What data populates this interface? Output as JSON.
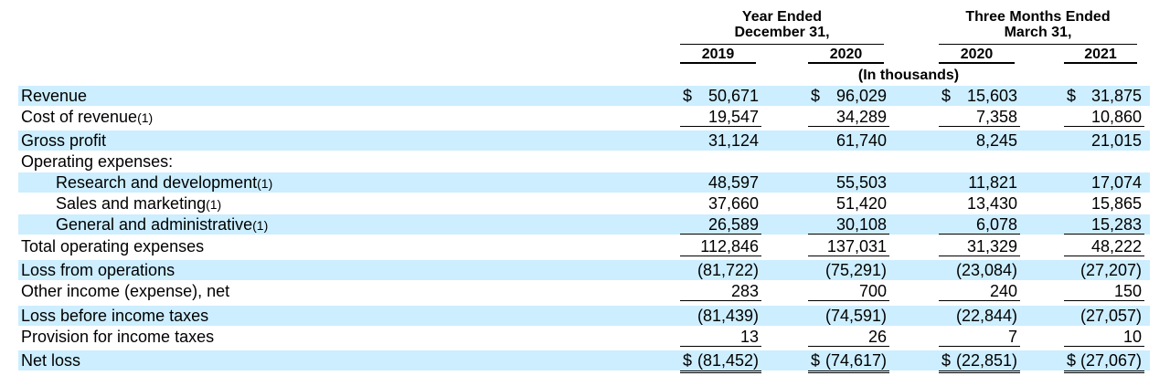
{
  "header": {
    "group1_line1": "Year Ended",
    "group1_line2": "December 31,",
    "group2_line1": "Three Months Ended",
    "group2_line2": "March 31,",
    "units": "(In thousands)",
    "years": [
      "2019",
      "2020",
      "2020",
      "2021"
    ]
  },
  "rows": [
    {
      "label": "Revenue",
      "note": "",
      "indent": false,
      "shaded": true,
      "cells": [
        {
          "cur": "$",
          "val": "50,671"
        },
        {
          "cur": "$",
          "val": "96,029"
        },
        {
          "cur": "$",
          "val": "15,603"
        },
        {
          "cur": "$",
          "val": "31,875"
        }
      ]
    },
    {
      "label": "Cost of revenue",
      "note": "(1)",
      "indent": false,
      "shaded": false,
      "underline": true,
      "cells": [
        {
          "cur": "",
          "val": "19,547"
        },
        {
          "cur": "",
          "val": "34,289"
        },
        {
          "cur": "",
          "val": "7,358"
        },
        {
          "cur": "",
          "val": "10,860"
        }
      ]
    },
    {
      "label": "Gross profit",
      "note": "",
      "indent": false,
      "shaded": true,
      "cells": [
        {
          "cur": "",
          "val": "31,124"
        },
        {
          "cur": "",
          "val": "61,740"
        },
        {
          "cur": "",
          "val": "8,245"
        },
        {
          "cur": "",
          "val": "21,015"
        }
      ]
    },
    {
      "label": "Operating expenses:",
      "note": "",
      "indent": false,
      "shaded": false,
      "cells": []
    },
    {
      "label": "Research and development",
      "note": "(1)",
      "indent": true,
      "shaded": true,
      "cells": [
        {
          "cur": "",
          "val": "48,597"
        },
        {
          "cur": "",
          "val": "55,503"
        },
        {
          "cur": "",
          "val": "11,821"
        },
        {
          "cur": "",
          "val": "17,074"
        }
      ]
    },
    {
      "label": "Sales and marketing",
      "note": "(1)",
      "indent": true,
      "shaded": false,
      "cells": [
        {
          "cur": "",
          "val": "37,660"
        },
        {
          "cur": "",
          "val": "51,420"
        },
        {
          "cur": "",
          "val": "13,430"
        },
        {
          "cur": "",
          "val": "15,865"
        }
      ]
    },
    {
      "label": "General and administrative",
      "note": "(1)",
      "indent": true,
      "shaded": true,
      "underline": true,
      "cells": [
        {
          "cur": "",
          "val": "26,589"
        },
        {
          "cur": "",
          "val": "30,108"
        },
        {
          "cur": "",
          "val": "6,078"
        },
        {
          "cur": "",
          "val": "15,283"
        }
      ]
    },
    {
      "label": "Total operating expenses",
      "note": "",
      "indent": false,
      "shaded": false,
      "underline": true,
      "cells": [
        {
          "cur": "",
          "val": "112,846"
        },
        {
          "cur": "",
          "val": "137,031"
        },
        {
          "cur": "",
          "val": "31,329"
        },
        {
          "cur": "",
          "val": "48,222"
        }
      ]
    },
    {
      "label": "Loss from operations",
      "note": "",
      "indent": false,
      "shaded": true,
      "cells": [
        {
          "cur": "",
          "val": "(81,722)"
        },
        {
          "cur": "",
          "val": "(75,291)"
        },
        {
          "cur": "",
          "val": "(23,084)"
        },
        {
          "cur": "",
          "val": "(27,207)"
        }
      ]
    },
    {
      "label": "Other income (expense), net",
      "note": "",
      "indent": false,
      "shaded": false,
      "underline": true,
      "cells": [
        {
          "cur": "",
          "val": "283"
        },
        {
          "cur": "",
          "val": "700"
        },
        {
          "cur": "",
          "val": "240"
        },
        {
          "cur": "",
          "val": "150"
        }
      ]
    },
    {
      "label": "Loss before income taxes",
      "note": "",
      "indent": false,
      "shaded": true,
      "cells": [
        {
          "cur": "",
          "val": "(81,439)"
        },
        {
          "cur": "",
          "val": "(74,591)"
        },
        {
          "cur": "",
          "val": "(22,844)"
        },
        {
          "cur": "",
          "val": "(27,057)"
        }
      ]
    },
    {
      "label": "Provision for income taxes",
      "note": "",
      "indent": false,
      "shaded": false,
      "underline": true,
      "cells": [
        {
          "cur": "",
          "val": "13"
        },
        {
          "cur": "",
          "val": "26"
        },
        {
          "cur": "",
          "val": "7"
        },
        {
          "cur": "",
          "val": "10"
        }
      ]
    },
    {
      "label": "Net loss",
      "note": "",
      "indent": false,
      "shaded": true,
      "double": true,
      "cells": [
        {
          "cur": "$",
          "val": "(81,452)"
        },
        {
          "cur": "$",
          "val": "(74,617)"
        },
        {
          "cur": "$",
          "val": "(22,851)"
        },
        {
          "cur": "$",
          "val": "(27,067)"
        }
      ]
    }
  ],
  "colors": {
    "row_shade": "#cceeff"
  }
}
